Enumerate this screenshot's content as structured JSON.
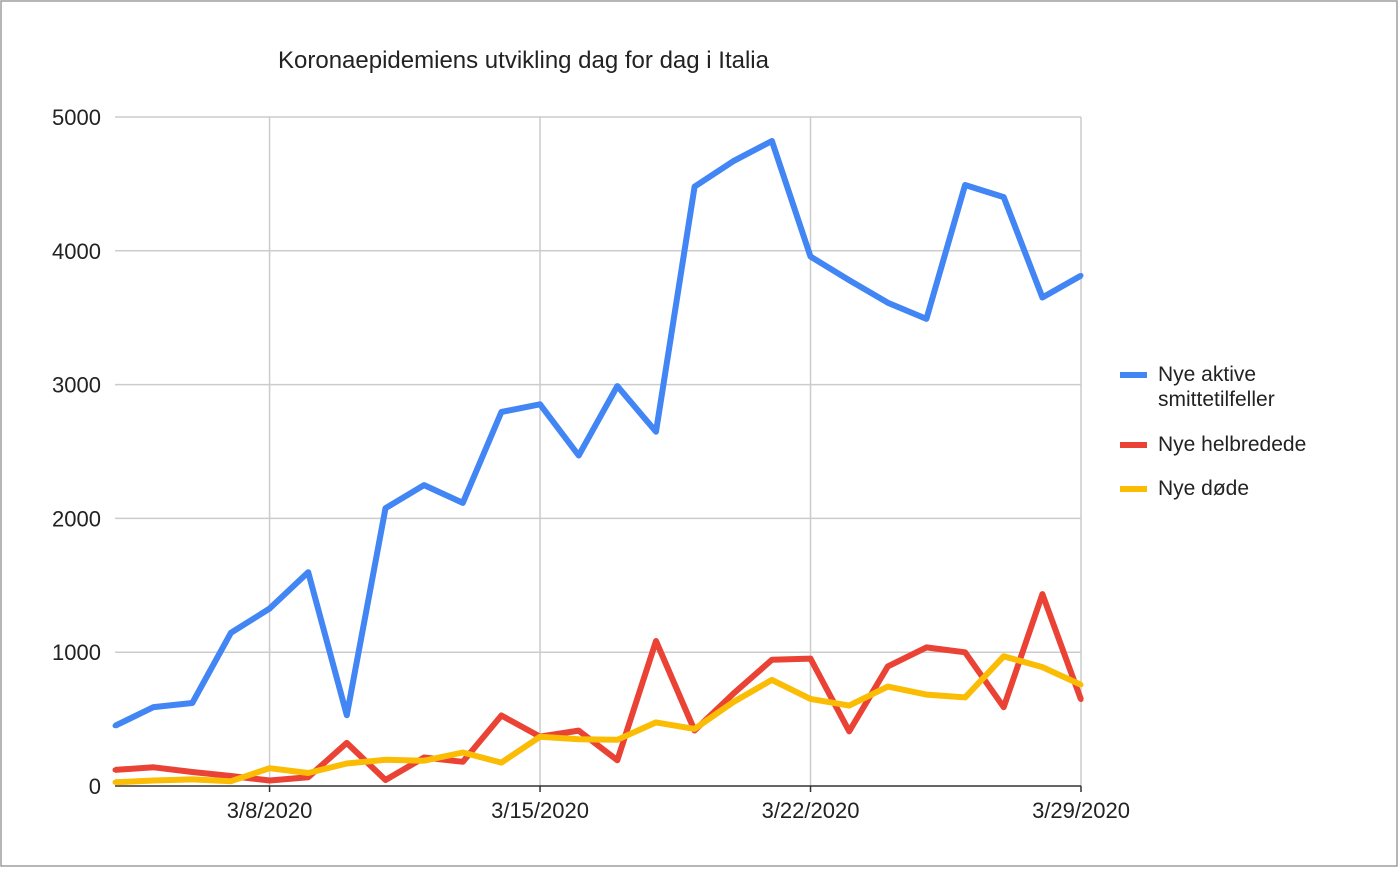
{
  "chart_data": {
    "type": "line",
    "title": "Koronaepidemiens utvikling dag for dag i Italia",
    "xlabel": "",
    "ylabel": "",
    "x": [
      "3/4/2020",
      "3/5/2020",
      "3/6/2020",
      "3/7/2020",
      "3/8/2020",
      "3/9/2020",
      "3/10/2020",
      "3/11/2020",
      "3/12/2020",
      "3/13/2020",
      "3/14/2020",
      "3/15/2020",
      "3/16/2020",
      "3/17/2020",
      "3/18/2020",
      "3/19/2020",
      "3/20/2020",
      "3/21/2020",
      "3/22/2020",
      "3/23/2020",
      "3/24/2020",
      "3/25/2020",
      "3/26/2020",
      "3/27/2020",
      "3/28/2020",
      "3/29/2020"
    ],
    "xticks": [
      "3/8/2020",
      "3/15/2020",
      "3/22/2020",
      "3/29/2020"
    ],
    "yticks": [
      0,
      1000,
      2000,
      3000,
      4000,
      5000
    ],
    "ylim": [
      0,
      5000
    ],
    "grid": true,
    "legend": "right",
    "series": [
      {
        "name": "Nye aktive smittetilfeller",
        "color": "#4285F4",
        "values": [
          450,
          590,
          620,
          1145,
          1326,
          1598,
          529,
          2076,
          2249,
          2116,
          2795,
          2853,
          2470,
          2989,
          2648,
          4480,
          4670,
          4821,
          3957,
          3780,
          3612,
          3491,
          4492,
          4401,
          3651,
          3815
        ]
      },
      {
        "name": "Nye helbredede",
        "color": "#EA4335",
        "values": [
          120,
          140,
          105,
          75,
          41,
          66,
          322,
          45,
          213,
          181,
          527,
          369,
          414,
          192,
          1084,
          415,
          689,
          943,
          952,
          408,
          894,
          1036,
          999,
          589,
          1434,
          646
        ]
      },
      {
        "name": "Nye døde",
        "color": "#FBBC04",
        "values": [
          28,
          41,
          49,
          36,
          133,
          97,
          168,
          196,
          189,
          250,
          175,
          368,
          349,
          345,
          475,
          427,
          627,
          793,
          651,
          601,
          743,
          683,
          662,
          969,
          889,
          756
        ]
      }
    ]
  }
}
